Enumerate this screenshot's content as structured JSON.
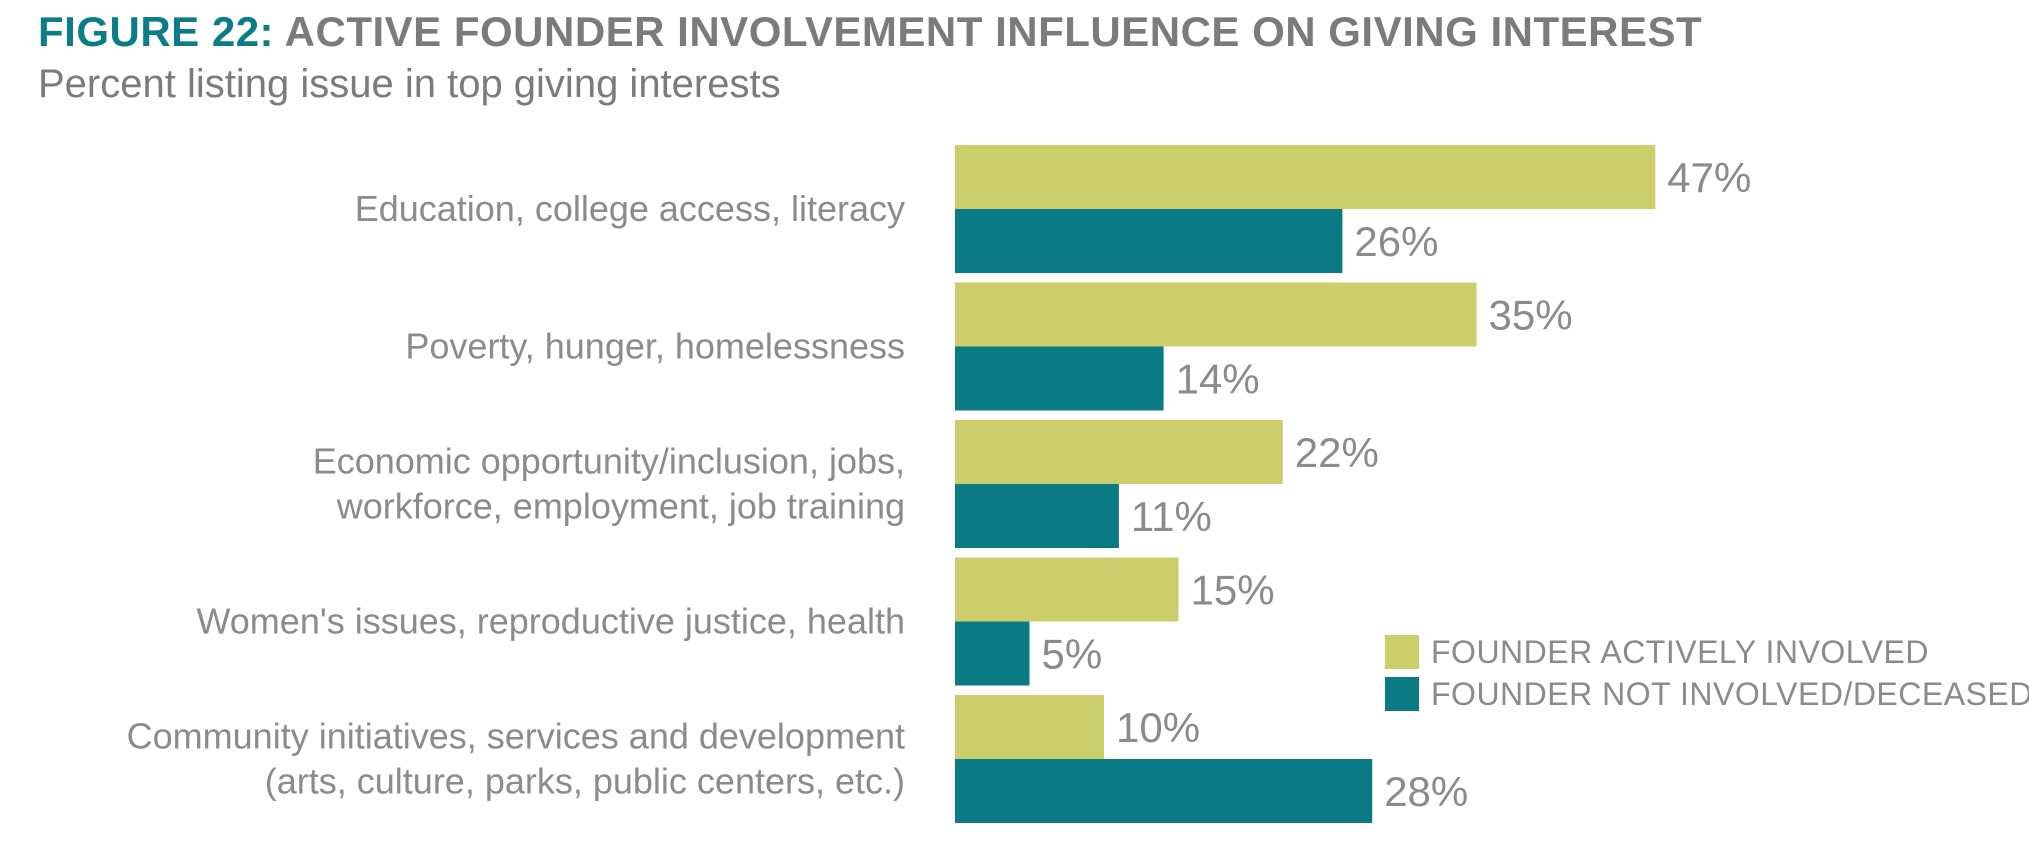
{
  "header": {
    "figure_label": "FIGURE 22:",
    "title": "ACTIVE FOUNDER INVOLVEMENT INFLUENCE ON GIVING INTEREST",
    "subtitle": "Percent listing issue in top giving interests"
  },
  "colors": {
    "involved": "#cbce6b",
    "not_involved": "#0a7a85",
    "title_accent": "#0a7d87",
    "text": "#8a8b8d"
  },
  "chart_data": {
    "type": "bar",
    "orientation": "horizontal",
    "categories": [
      [
        "Education, college access, literacy"
      ],
      [
        "Poverty, hunger, homelessness"
      ],
      [
        "Economic opportunity/inclusion, jobs,",
        "workforce, employment, job training"
      ],
      [
        "Women's issues, reproductive justice, health"
      ],
      [
        "Community initiatives, services and development",
        "(arts, culture, parks, public centers, etc.)"
      ]
    ],
    "series": [
      {
        "name": "FOUNDER ACTIVELY INVOLVED",
        "values": [
          47,
          35,
          22,
          15,
          10
        ],
        "labels": [
          "47%",
          "35%",
          "22%",
          "15%",
          "10%"
        ]
      },
      {
        "name": "FOUNDER NOT INVOLVED/DECEASED",
        "values": [
          26,
          14,
          11,
          5,
          28
        ],
        "labels": [
          "26%",
          "14%",
          "11%",
          "5%",
          "28%"
        ]
      }
    ],
    "xlim": [
      0,
      47
    ],
    "grid": false,
    "legend_position": "bottom-right"
  }
}
